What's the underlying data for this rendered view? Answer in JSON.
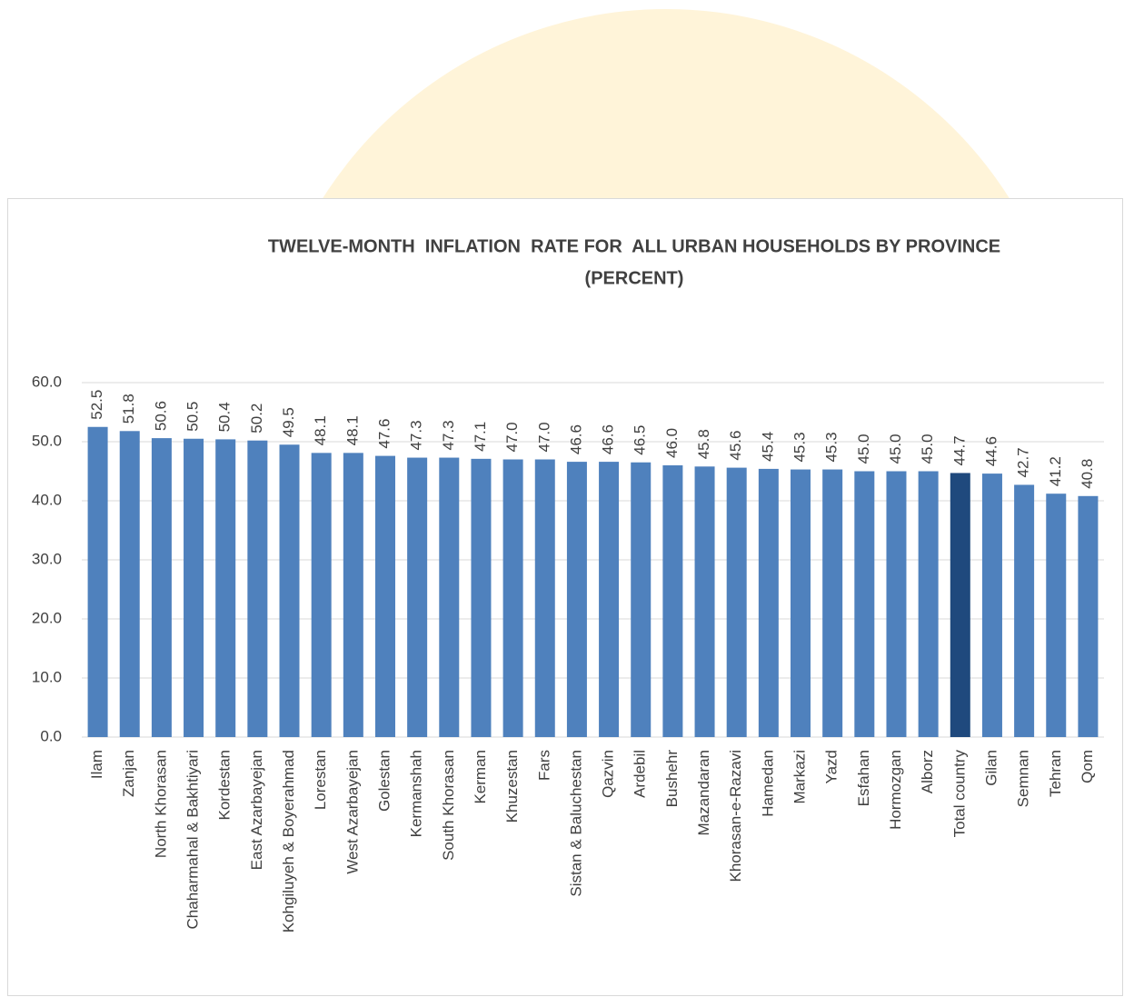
{
  "chart_data": {
    "type": "bar",
    "title": "TWELVE-MONTH  INFLATION  RATE FOR  ALL URBAN HOUSEHOLDS BY PROVINCE",
    "subtitle": "(PERCENT)",
    "categories": [
      "Ilam",
      "Zanjan",
      "North Khorasan",
      "Chaharmahal & Bakhtiyari",
      "Kordestan",
      "East Azarbayejan",
      "Kohgiluyeh & Boyerahmad",
      "Lorestan",
      "West Azarbayejan",
      "Golestan",
      "Kermanshah",
      "South Khorasan",
      "Kerman",
      "Khuzestan",
      "Fars",
      "Sistan & Baluchestan",
      "Qazvin",
      "Ardebil",
      "Bushehr",
      "Mazandaran",
      "Khorasan-e-Razavi",
      "Hamedan",
      "Markazi",
      "Yazd",
      "Esfahan",
      "Hormozgan",
      "Alborz",
      "Total country",
      "Gilan",
      "Semnan",
      "Tehran",
      "Qom"
    ],
    "values": [
      52.5,
      51.8,
      50.6,
      50.5,
      50.4,
      50.2,
      49.5,
      48.1,
      48.1,
      47.6,
      47.3,
      47.3,
      47.1,
      47.0,
      47.0,
      46.6,
      46.6,
      46.5,
      46.0,
      45.8,
      45.6,
      45.4,
      45.3,
      45.3,
      45.0,
      45.0,
      45.0,
      44.7,
      44.6,
      42.7,
      41.2,
      40.8
    ],
    "value_labels": [
      "52.5",
      "51.8",
      "50.6",
      "50.5",
      "50.4",
      "50.2",
      "49.5",
      "48.1",
      "48.1",
      "47.6",
      "47.3",
      "47.3",
      "47.1",
      "47.0",
      "47.0",
      "46.6",
      "46.6",
      "46.5",
      "46.0",
      "45.8",
      "45.6",
      "45.4",
      "45.3",
      "45.3",
      "45.0",
      "45.0",
      "45.0",
      "44.7",
      "44.6",
      "42.7",
      "41.2",
      "40.8"
    ],
    "colors": [
      "#4f81bd",
      "#4f81bd",
      "#4f81bd",
      "#4f81bd",
      "#4f81bd",
      "#4f81bd",
      "#4f81bd",
      "#4f81bd",
      "#4f81bd",
      "#4f81bd",
      "#4f81bd",
      "#4f81bd",
      "#4f81bd",
      "#4f81bd",
      "#4f81bd",
      "#4f81bd",
      "#4f81bd",
      "#4f81bd",
      "#4f81bd",
      "#4f81bd",
      "#4f81bd",
      "#4f81bd",
      "#4f81bd",
      "#4f81bd",
      "#4f81bd",
      "#4f81bd",
      "#4f81bd",
      "#1f497d",
      "#4f81bd",
      "#4f81bd",
      "#4f81bd",
      "#4f81bd"
    ],
    "ylim": [
      0,
      60
    ],
    "yticks": [
      {
        "value": 0,
        "label": "0.0"
      },
      {
        "value": 10,
        "label": "10.0"
      },
      {
        "value": 20,
        "label": "20.0"
      },
      {
        "value": 30,
        "label": "30.0"
      },
      {
        "value": 40,
        "label": "40.0"
      },
      {
        "value": 50,
        "label": "50.0"
      },
      {
        "value": 60,
        "label": "60.0"
      }
    ],
    "grid": true
  }
}
